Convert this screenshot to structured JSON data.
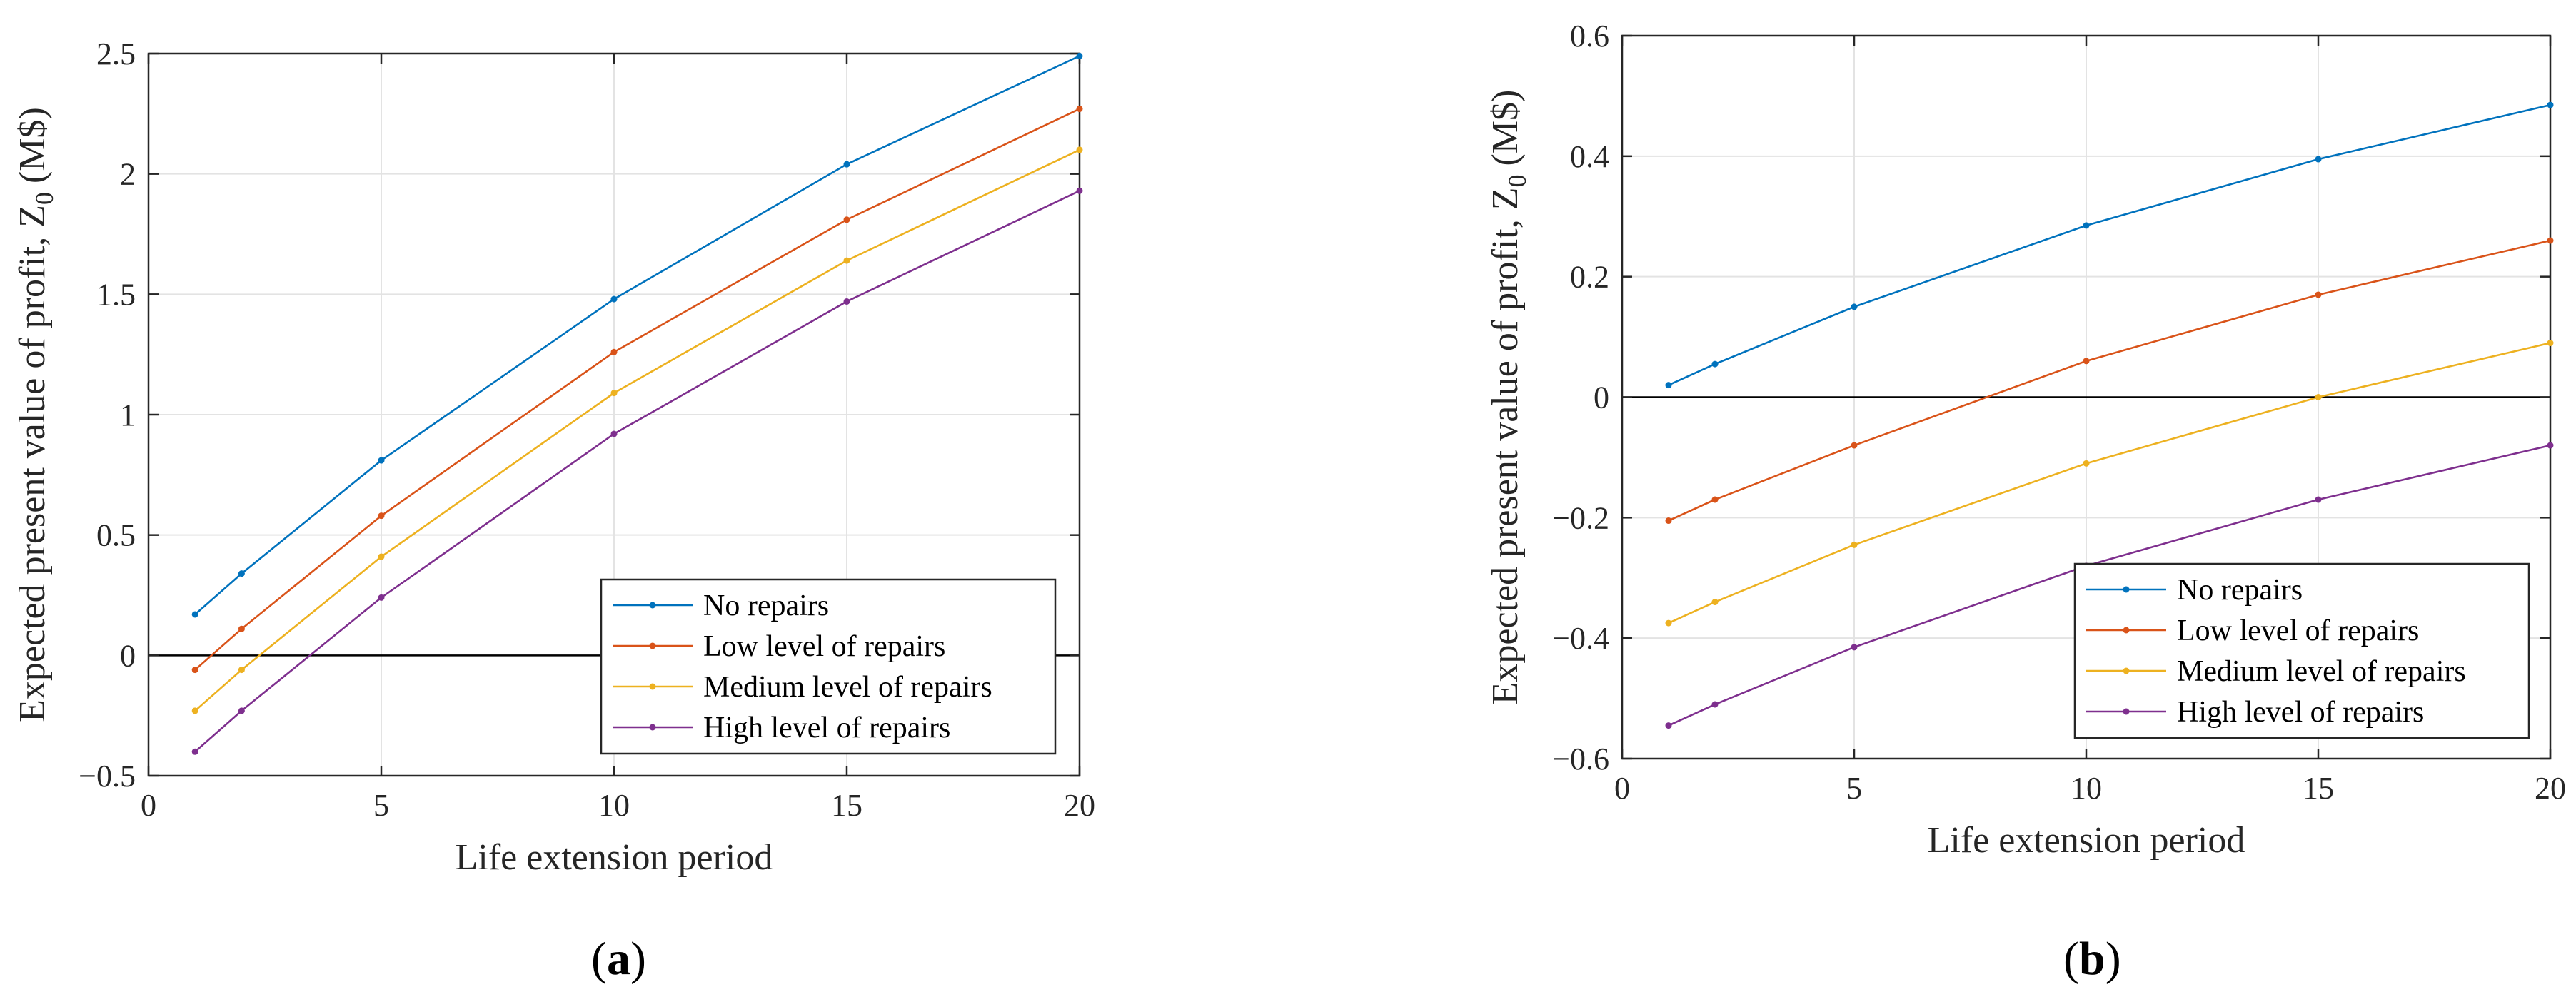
{
  "chart_data": [
    {
      "type": "line",
      "panel_label": "(a)",
      "panel_letter": "a",
      "xlabel": "Life extension period",
      "ylabel": "Expected present value of profit, Z",
      "ylabel_sub": "0",
      "ylabel_unit": "(M$)",
      "xlim": [
        0,
        20
      ],
      "ylim": [
        -0.5,
        2.5
      ],
      "xticks": [
        0,
        5,
        10,
        15,
        20
      ],
      "xtick_labels": [
        "0",
        "5",
        "10",
        "15",
        "20"
      ],
      "yticks": [
        -0.5,
        0,
        0.5,
        1,
        1.5,
        2,
        2.5
      ],
      "ytick_labels": [
        "−0.5",
        "0",
        "0.5",
        "1",
        "1.5",
        "2",
        "2.5"
      ],
      "grid": true,
      "legend_position": "bottom-right",
      "x": [
        1,
        2,
        5,
        10,
        15,
        20
      ],
      "series": [
        {
          "name": "No repairs",
          "color": "#0072BD",
          "values": [
            0.17,
            0.34,
            0.81,
            1.48,
            2.04,
            2.49
          ]
        },
        {
          "name": "Low level of repairs",
          "color": "#D95319",
          "values": [
            -0.06,
            0.11,
            0.58,
            1.26,
            1.81,
            2.27
          ]
        },
        {
          "name": "Medium level of repairs",
          "color": "#EDB120",
          "values": [
            -0.23,
            -0.06,
            0.41,
            1.09,
            1.64,
            2.1
          ]
        },
        {
          "name": "High level of repairs",
          "color": "#7E2F8E",
          "values": [
            -0.4,
            -0.23,
            0.24,
            0.92,
            1.47,
            1.93
          ]
        }
      ]
    },
    {
      "type": "line",
      "panel_label": "(b)",
      "panel_letter": "b",
      "xlabel": "Life extension period",
      "ylabel": "Expected present value of profit, Z",
      "ylabel_sub": "0",
      "ylabel_unit": "(M$)",
      "xlim": [
        0,
        20
      ],
      "ylim": [
        -0.6,
        0.6
      ],
      "xticks": [
        0,
        5,
        10,
        15,
        20
      ],
      "xtick_labels": [
        "0",
        "5",
        "10",
        "15",
        "20"
      ],
      "yticks": [
        -0.6,
        -0.4,
        -0.2,
        0,
        0.2,
        0.4,
        0.6
      ],
      "ytick_labels": [
        "−0.6",
        "−0.4",
        "−0.2",
        "0",
        "0.2",
        "0.4",
        "0.6"
      ],
      "grid": true,
      "legend_position": "bottom-right",
      "x": [
        1,
        2,
        5,
        10,
        15,
        20
      ],
      "series": [
        {
          "name": "No repairs",
          "color": "#0072BD",
          "values": [
            0.02,
            0.055,
            0.15,
            0.285,
            0.395,
            0.485
          ]
        },
        {
          "name": "Low level of repairs",
          "color": "#D95319",
          "values": [
            -0.205,
            -0.17,
            -0.08,
            0.06,
            0.17,
            0.26
          ]
        },
        {
          "name": "Medium level of repairs",
          "color": "#EDB120",
          "values": [
            -0.375,
            -0.34,
            -0.245,
            -0.11,
            0.0,
            0.09
          ]
        },
        {
          "name": "High level of repairs",
          "color": "#7E2F8E",
          "values": [
            -0.545,
            -0.51,
            -0.415,
            -0.28,
            -0.17,
            -0.08
          ]
        }
      ]
    }
  ]
}
